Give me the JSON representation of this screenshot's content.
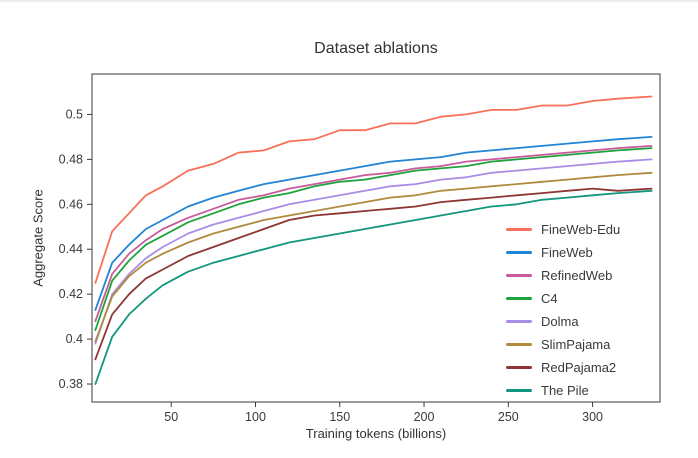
{
  "chart_data": {
    "type": "line",
    "title": "Dataset ablations",
    "xlabel": "Training tokens (billions)",
    "ylabel": "Aggregate Score",
    "xlim": [
      3,
      340
    ],
    "ylim": [
      0.372,
      0.518
    ],
    "xticks": [
      50,
      100,
      150,
      200,
      250,
      300
    ],
    "yticks": [
      0.38,
      0.4,
      0.42,
      0.44,
      0.46,
      0.48,
      0.5
    ],
    "grid": false,
    "legend_position": "inside-lower-right",
    "x": [
      5,
      15,
      25,
      35,
      45,
      60,
      75,
      90,
      105,
      120,
      135,
      150,
      165,
      180,
      195,
      210,
      225,
      240,
      255,
      270,
      285,
      300,
      315,
      335
    ],
    "series": [
      {
        "name": "FineWeb-Edu",
        "color": "#f9705a",
        "values": [
          0.425,
          0.448,
          0.456,
          0.464,
          0.468,
          0.475,
          0.478,
          0.483,
          0.484,
          0.488,
          0.489,
          0.493,
          0.493,
          0.496,
          0.496,
          0.499,
          0.5,
          0.502,
          0.502,
          0.504,
          0.504,
          0.506,
          0.507,
          0.508
        ]
      },
      {
        "name": "FineWeb",
        "color": "#2184d4",
        "values": [
          0.413,
          0.434,
          0.442,
          0.449,
          0.453,
          0.459,
          0.463,
          0.466,
          0.469,
          0.471,
          0.473,
          0.475,
          0.477,
          0.479,
          0.48,
          0.481,
          0.483,
          0.484,
          0.485,
          0.486,
          0.487,
          0.488,
          0.489,
          0.49
        ]
      },
      {
        "name": "RefinedWeb",
        "color": "#c75b9b",
        "values": [
          0.408,
          0.429,
          0.438,
          0.444,
          0.449,
          0.454,
          0.458,
          0.462,
          0.464,
          0.467,
          0.469,
          0.471,
          0.473,
          0.474,
          0.476,
          0.477,
          0.479,
          0.48,
          0.481,
          0.482,
          0.483,
          0.484,
          0.485,
          0.486
        ]
      },
      {
        "name": "C4",
        "color": "#1fa33c",
        "values": [
          0.404,
          0.426,
          0.435,
          0.442,
          0.446,
          0.452,
          0.456,
          0.46,
          0.463,
          0.465,
          0.468,
          0.47,
          0.471,
          0.473,
          0.475,
          0.476,
          0.477,
          0.479,
          0.48,
          0.481,
          0.482,
          0.483,
          0.484,
          0.485
        ]
      },
      {
        "name": "Dolma",
        "color": "#a98de5",
        "values": [
          0.398,
          0.42,
          0.429,
          0.436,
          0.441,
          0.447,
          0.451,
          0.454,
          0.457,
          0.46,
          0.462,
          0.464,
          0.466,
          0.468,
          0.469,
          0.471,
          0.472,
          0.474,
          0.475,
          0.476,
          0.477,
          0.478,
          0.479,
          0.48
        ]
      },
      {
        "name": "SlimPajama",
        "color": "#b08b3e",
        "values": [
          0.399,
          0.419,
          0.428,
          0.434,
          0.438,
          0.443,
          0.447,
          0.45,
          0.453,
          0.455,
          0.457,
          0.459,
          0.461,
          0.463,
          0.464,
          0.466,
          0.467,
          0.468,
          0.469,
          0.47,
          0.471,
          0.472,
          0.473,
          0.474
        ]
      },
      {
        "name": "RedPajama2",
        "color": "#8e3634",
        "values": [
          0.391,
          0.411,
          0.42,
          0.427,
          0.431,
          0.437,
          0.441,
          0.445,
          0.449,
          0.453,
          0.455,
          0.456,
          0.457,
          0.458,
          0.459,
          0.461,
          0.462,
          0.463,
          0.464,
          0.465,
          0.466,
          0.467,
          0.466,
          0.467
        ]
      },
      {
        "name": "The Pile",
        "color": "#13967f",
        "values": [
          0.38,
          0.401,
          0.411,
          0.418,
          0.424,
          0.43,
          0.434,
          0.437,
          0.44,
          0.443,
          0.445,
          0.447,
          0.449,
          0.451,
          0.453,
          0.455,
          0.457,
          0.459,
          0.46,
          0.462,
          0.463,
          0.464,
          0.465,
          0.466
        ]
      }
    ]
  }
}
